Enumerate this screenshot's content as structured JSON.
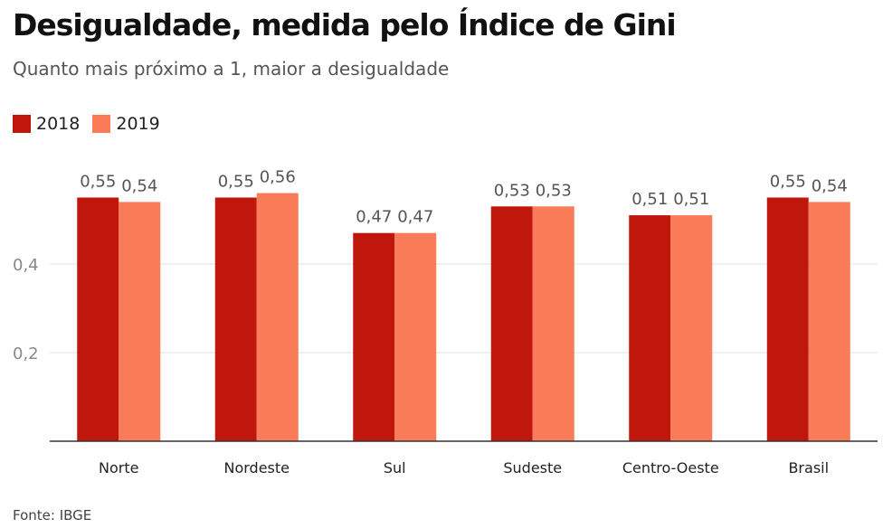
{
  "title": "Desigualdade, medida pelo Índice de Gini",
  "subtitle": "Quanto mais próximo a 1, maior a desigualdade",
  "source": "Fonte: IBGE",
  "colors": {
    "2018": "#c0170d",
    "2019": "#f97b58"
  },
  "chart_data": {
    "type": "bar",
    "title": "Desigualdade, medida pelo Índice de Gini",
    "categories": [
      "Norte",
      "Nordeste",
      "Sul",
      "Sudeste",
      "Centro-Oeste",
      "Brasil"
    ],
    "series": [
      {
        "name": "2018",
        "values": [
          0.55,
          0.55,
          0.47,
          0.53,
          0.51,
          0.55
        ],
        "labels": [
          "0,55",
          "0,55",
          "0,47",
          "0,53",
          "0,51",
          "0,55"
        ]
      },
      {
        "name": "2019",
        "values": [
          0.54,
          0.56,
          0.47,
          0.53,
          0.51,
          0.54
        ],
        "labels": [
          "0,54",
          "0,56",
          "0,47",
          "0,53",
          "0,51",
          "0,54"
        ]
      }
    ],
    "yticks": [
      {
        "value": 0.2,
        "label": "0,2"
      },
      {
        "value": 0.4,
        "label": "0,4"
      }
    ],
    "ylim": [
      0,
      0.6
    ],
    "legend": "top-left",
    "grid": true
  }
}
